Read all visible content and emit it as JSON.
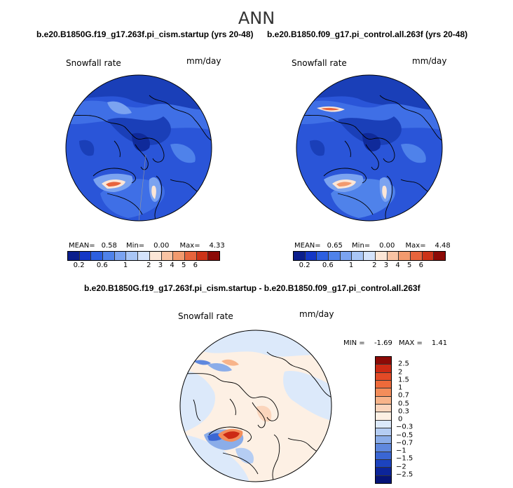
{
  "title": "ANN",
  "panels": [
    {
      "case": "b.e20.B1850G.f19_g17.263f.pi_cism.startup (yrs 20-48)",
      "variable": "Snowfall rate",
      "units": "mm/day",
      "mean_label": "MEAN=",
      "mean": "0.58",
      "min_label": "Min=",
      "min": "0.00",
      "max_label": "Max=",
      "max": "4.33"
    },
    {
      "case": "b.e20.B1850.f09_g17.pi_control.all.263f (yrs 20-48)",
      "variable": "Snowfall rate",
      "units": "mm/day",
      "mean_label": "MEAN=",
      "mean": "0.65",
      "min_label": "Min=",
      "min": "0.00",
      "max_label": "Max=",
      "max": "4.48"
    }
  ],
  "abs_colorbar": {
    "colors": [
      "#0b1e8c",
      "#1437c6",
      "#2c5fe0",
      "#4f82ea",
      "#7ba3f0",
      "#a9c6f6",
      "#d4e3fb",
      "#fce6d6",
      "#f9c3a3",
      "#f29a6e",
      "#e7643c",
      "#cc3318",
      "#8c0a06"
    ],
    "ticks": [
      "0.2",
      "0.6",
      "1",
      "2",
      "3",
      "4",
      "5",
      "6"
    ]
  },
  "diff_panel": {
    "title": "b.e20.B1850G.f19_g17.263f.pi_cism.startup - b.e20.B1850.f09_g17.pi_control.all.263f",
    "variable": "Snowfall rate",
    "units": "mm/day",
    "min_label": "MIN =",
    "min": "-1.69",
    "max_label": "MAX =",
    "max": "1.41"
  },
  "diff_colorbar": {
    "colors": [
      "#8c0a06",
      "#cc2a14",
      "#e34a26",
      "#ee6a3a",
      "#f38d5a",
      "#f8b48a",
      "#fbd5bc",
      "#fdf0e4",
      "#dce9fa",
      "#b5cdf3",
      "#8bade9",
      "#5f88de",
      "#3a66d4",
      "#1c43bf",
      "#0c259a",
      "#061478"
    ],
    "ticks": [
      "2.5",
      "2",
      "1.5",
      "1",
      "0.7",
      "0.5",
      "0.3",
      "0",
      "-0.3",
      "-0.5",
      "-0.7",
      "-1",
      "-1.5",
      "-2",
      "-2.5"
    ]
  }
}
